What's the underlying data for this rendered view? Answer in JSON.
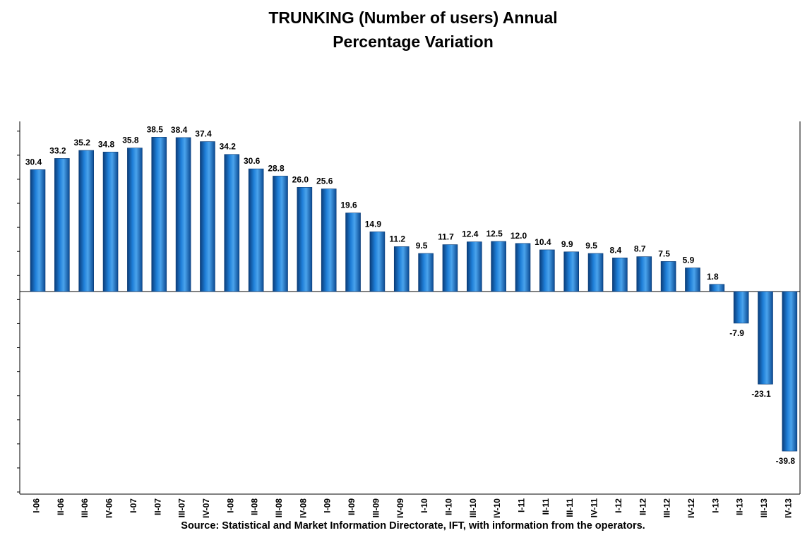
{
  "chart_data": {
    "type": "bar",
    "title_line1": "TRUNKING (Number of users) Annual",
    "title_line2": "Percentage Variation",
    "source": "Source: Statistical and Market Information Directorate, IFT, with information from the operators.",
    "xlabel": "",
    "ylabel": "",
    "ylim": [
      -50,
      42
    ],
    "grid": false,
    "bar_color": "#1a6fc4",
    "categories": [
      "I-06",
      "II-06",
      "III-06",
      "IV-06",
      "I-07",
      "II-07",
      "III-07",
      "IV-07",
      "I-08",
      "II-08",
      "III-08",
      "IV-08",
      "I-09",
      "II-09",
      "III-09",
      "IV-09",
      "I-10",
      "II-10",
      "III-10",
      "IV-10",
      "I-11",
      "II-11",
      "III-11",
      "IV-11",
      "I-12",
      "II-12",
      "III-12",
      "IV-12",
      "I-13",
      "II-13",
      "III-13",
      "IV-13"
    ],
    "values": [
      30.4,
      33.2,
      35.2,
      34.8,
      35.8,
      38.5,
      38.4,
      37.4,
      34.2,
      30.6,
      28.8,
      26.0,
      25.6,
      19.6,
      14.9,
      11.2,
      9.5,
      11.7,
      12.4,
      12.5,
      12.0,
      10.4,
      9.9,
      9.5,
      8.4,
      8.7,
      7.5,
      5.9,
      1.8,
      -7.9,
      -23.1,
      -39.8
    ],
    "value_labels": [
      "30.4",
      "33.2",
      "35.2",
      "34.8",
      "35.8",
      "38.5",
      "38.4",
      "37.4",
      "34.2",
      "30.6",
      "28.8",
      "26.0",
      "25.6",
      "19.6",
      "14.9",
      "11.2",
      "9.5",
      "11.7",
      "12.4",
      "12.5",
      "12.0",
      "10.4",
      "9.9",
      "9.5",
      "8.4",
      "8.7",
      "7.5",
      "5.9",
      "1.8",
      "-7.9",
      "-23.1",
      "-39.8"
    ]
  }
}
